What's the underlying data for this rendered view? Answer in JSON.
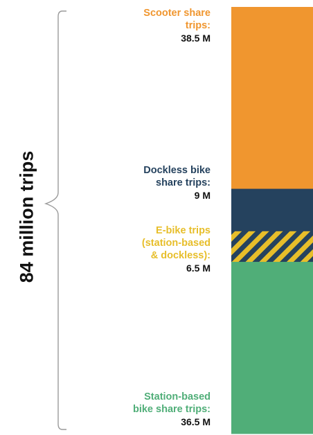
{
  "chart_data": {
    "type": "bar",
    "stacked": true,
    "total_label": "84 million trips",
    "unit": "M",
    "series": [
      {
        "name": "Station-based bike share trips:",
        "value": 36.5,
        "display": "36.5 M",
        "color": "#50ae78",
        "pattern": "solid"
      },
      {
        "name": "E-bike trips (station-based & dockless):",
        "value": 6.5,
        "display": "6.5 M",
        "color": "#e7be2a",
        "pattern": "hatched"
      },
      {
        "name": "Dockless bike share trips:",
        "value": 9,
        "display": "9 M",
        "color": "#25425e",
        "pattern": "solid"
      },
      {
        "name": "Scooter share trips:",
        "value": 38.5,
        "display": "38.5 M",
        "color": "#f0962f",
        "pattern": "solid"
      }
    ],
    "total": 84,
    "brace_color": "#9a9a9a"
  },
  "labels": {
    "scooter": {
      "line1": "Scooter share",
      "line2": "trips:",
      "value": "38.5 M"
    },
    "dockless": {
      "line1": "Dockless bike",
      "line2": "share trips:",
      "value": "9 M"
    },
    "ebike": {
      "line1": "E-bike trips",
      "line2": "(station-based",
      "line3": "& dockless):",
      "value": "6.5 M"
    },
    "station": {
      "line1": "Station-based",
      "line2": "bike share trips:",
      "value": "36.5 M"
    }
  }
}
